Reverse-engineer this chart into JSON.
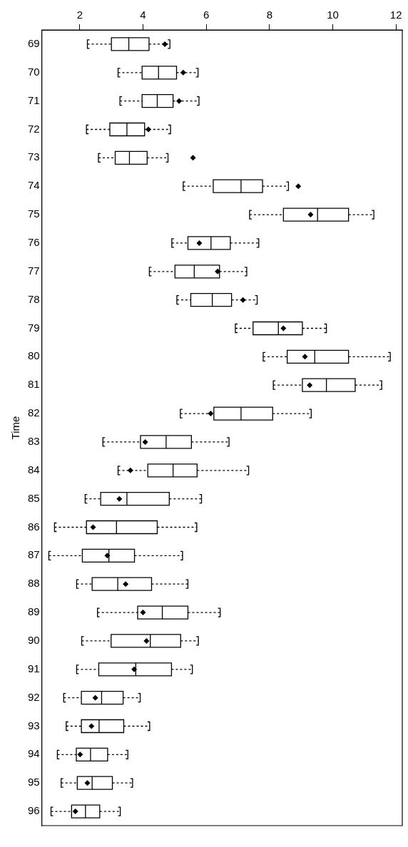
{
  "chart_data": {
    "type": "box",
    "orientation": "horizontal",
    "ylabel": "Time",
    "marker": "diamond",
    "grid": false,
    "legend": false,
    "categories": [
      "69",
      "70",
      "71",
      "72",
      "73",
      "74",
      "75",
      "76",
      "77",
      "78",
      "79",
      "80",
      "81",
      "82",
      "83",
      "84",
      "85",
      "86",
      "87",
      "88",
      "89",
      "90",
      "91",
      "92",
      "93",
      "94",
      "95",
      "96"
    ],
    "xlim": [
      0.8,
      12.2
    ],
    "xticks": [
      2,
      4,
      6,
      8,
      10,
      12
    ],
    "boxes": [
      {
        "low": 2.24,
        "q1": 3.0,
        "median": 3.55,
        "q3": 4.19,
        "high": 4.85,
        "mean": 4.69
      },
      {
        "low": 3.21,
        "q1": 3.97,
        "median": 4.49,
        "q3": 5.06,
        "high": 5.74,
        "mean": 5.27
      },
      {
        "low": 3.27,
        "q1": 3.97,
        "median": 4.45,
        "q3": 4.95,
        "high": 5.77,
        "mean": 5.14
      },
      {
        "low": 2.21,
        "q1": 2.95,
        "median": 3.49,
        "q3": 4.05,
        "high": 4.87,
        "mean": 4.17
      },
      {
        "low": 2.59,
        "q1": 3.12,
        "median": 3.57,
        "q3": 4.13,
        "high": 4.79,
        "mean": 5.58
      },
      {
        "low": 5.27,
        "q1": 6.22,
        "median": 7.1,
        "q3": 7.78,
        "high": 8.6,
        "mean": 8.91
      },
      {
        "low": 7.37,
        "q1": 8.44,
        "median": 9.52,
        "q3": 10.5,
        "high": 11.3,
        "mean": 9.3
      },
      {
        "low": 4.91,
        "q1": 5.42,
        "median": 6.15,
        "q3": 6.76,
        "high": 7.66,
        "mean": 5.78
      },
      {
        "low": 4.2,
        "q1": 5.01,
        "median": 5.62,
        "q3": 6.42,
        "high": 7.28,
        "mean": 6.36
      },
      {
        "low": 5.07,
        "q1": 5.51,
        "median": 6.19,
        "q3": 6.8,
        "high": 7.61,
        "mean": 7.16
      },
      {
        "low": 6.92,
        "q1": 7.48,
        "median": 8.28,
        "q3": 9.04,
        "high": 9.8,
        "mean": 8.44
      },
      {
        "low": 7.8,
        "q1": 8.56,
        "median": 9.43,
        "q3": 10.5,
        "high": 11.82,
        "mean": 9.12
      },
      {
        "low": 8.12,
        "q1": 9.04,
        "median": 9.8,
        "q3": 10.71,
        "high": 11.55,
        "mean": 9.27
      },
      {
        "low": 5.18,
        "q1": 6.24,
        "median": 7.1,
        "q3": 8.1,
        "high": 9.32,
        "mean": 6.14
      },
      {
        "low": 2.73,
        "q1": 3.92,
        "median": 4.73,
        "q3": 5.53,
        "high": 6.72,
        "mean": 4.07
      },
      {
        "low": 3.21,
        "q1": 4.15,
        "median": 4.95,
        "q3": 5.71,
        "high": 7.34,
        "mean": 3.6
      },
      {
        "low": 2.17,
        "q1": 2.66,
        "median": 3.49,
        "q3": 4.83,
        "high": 5.85,
        "mean": 3.25
      },
      {
        "low": 1.2,
        "q1": 2.21,
        "median": 3.16,
        "q3": 4.45,
        "high": 5.7,
        "mean": 2.42
      },
      {
        "low": 1.02,
        "q1": 2.08,
        "median": 2.92,
        "q3": 3.73,
        "high": 5.25,
        "mean": 2.87
      },
      {
        "low": 1.9,
        "q1": 2.39,
        "median": 3.2,
        "q3": 4.27,
        "high": 5.42,
        "mean": 3.45
      },
      {
        "low": 2.56,
        "q1": 3.83,
        "median": 4.61,
        "q3": 5.42,
        "high": 6.44,
        "mean": 4.0
      },
      {
        "low": 2.06,
        "q1": 2.99,
        "median": 4.23,
        "q3": 5.19,
        "high": 5.75,
        "mean": 4.11
      },
      {
        "low": 1.9,
        "q1": 2.6,
        "median": 3.77,
        "q3": 4.9,
        "high": 5.56,
        "mean": 3.72
      },
      {
        "low": 1.49,
        "q1": 2.05,
        "median": 2.69,
        "q3": 3.37,
        "high": 3.91,
        "mean": 2.49
      },
      {
        "low": 1.57,
        "q1": 2.05,
        "median": 2.61,
        "q3": 3.39,
        "high": 4.21,
        "mean": 2.37
      },
      {
        "low": 1.29,
        "q1": 1.89,
        "median": 2.34,
        "q3": 2.88,
        "high": 3.52,
        "mean": 2.01
      },
      {
        "low": 1.41,
        "q1": 1.92,
        "median": 2.39,
        "q3": 3.03,
        "high": 3.67,
        "mean": 2.24
      },
      {
        "low": 1.09,
        "q1": 1.74,
        "median": 2.18,
        "q3": 2.63,
        "high": 3.28,
        "mean": 1.86
      }
    ]
  }
}
